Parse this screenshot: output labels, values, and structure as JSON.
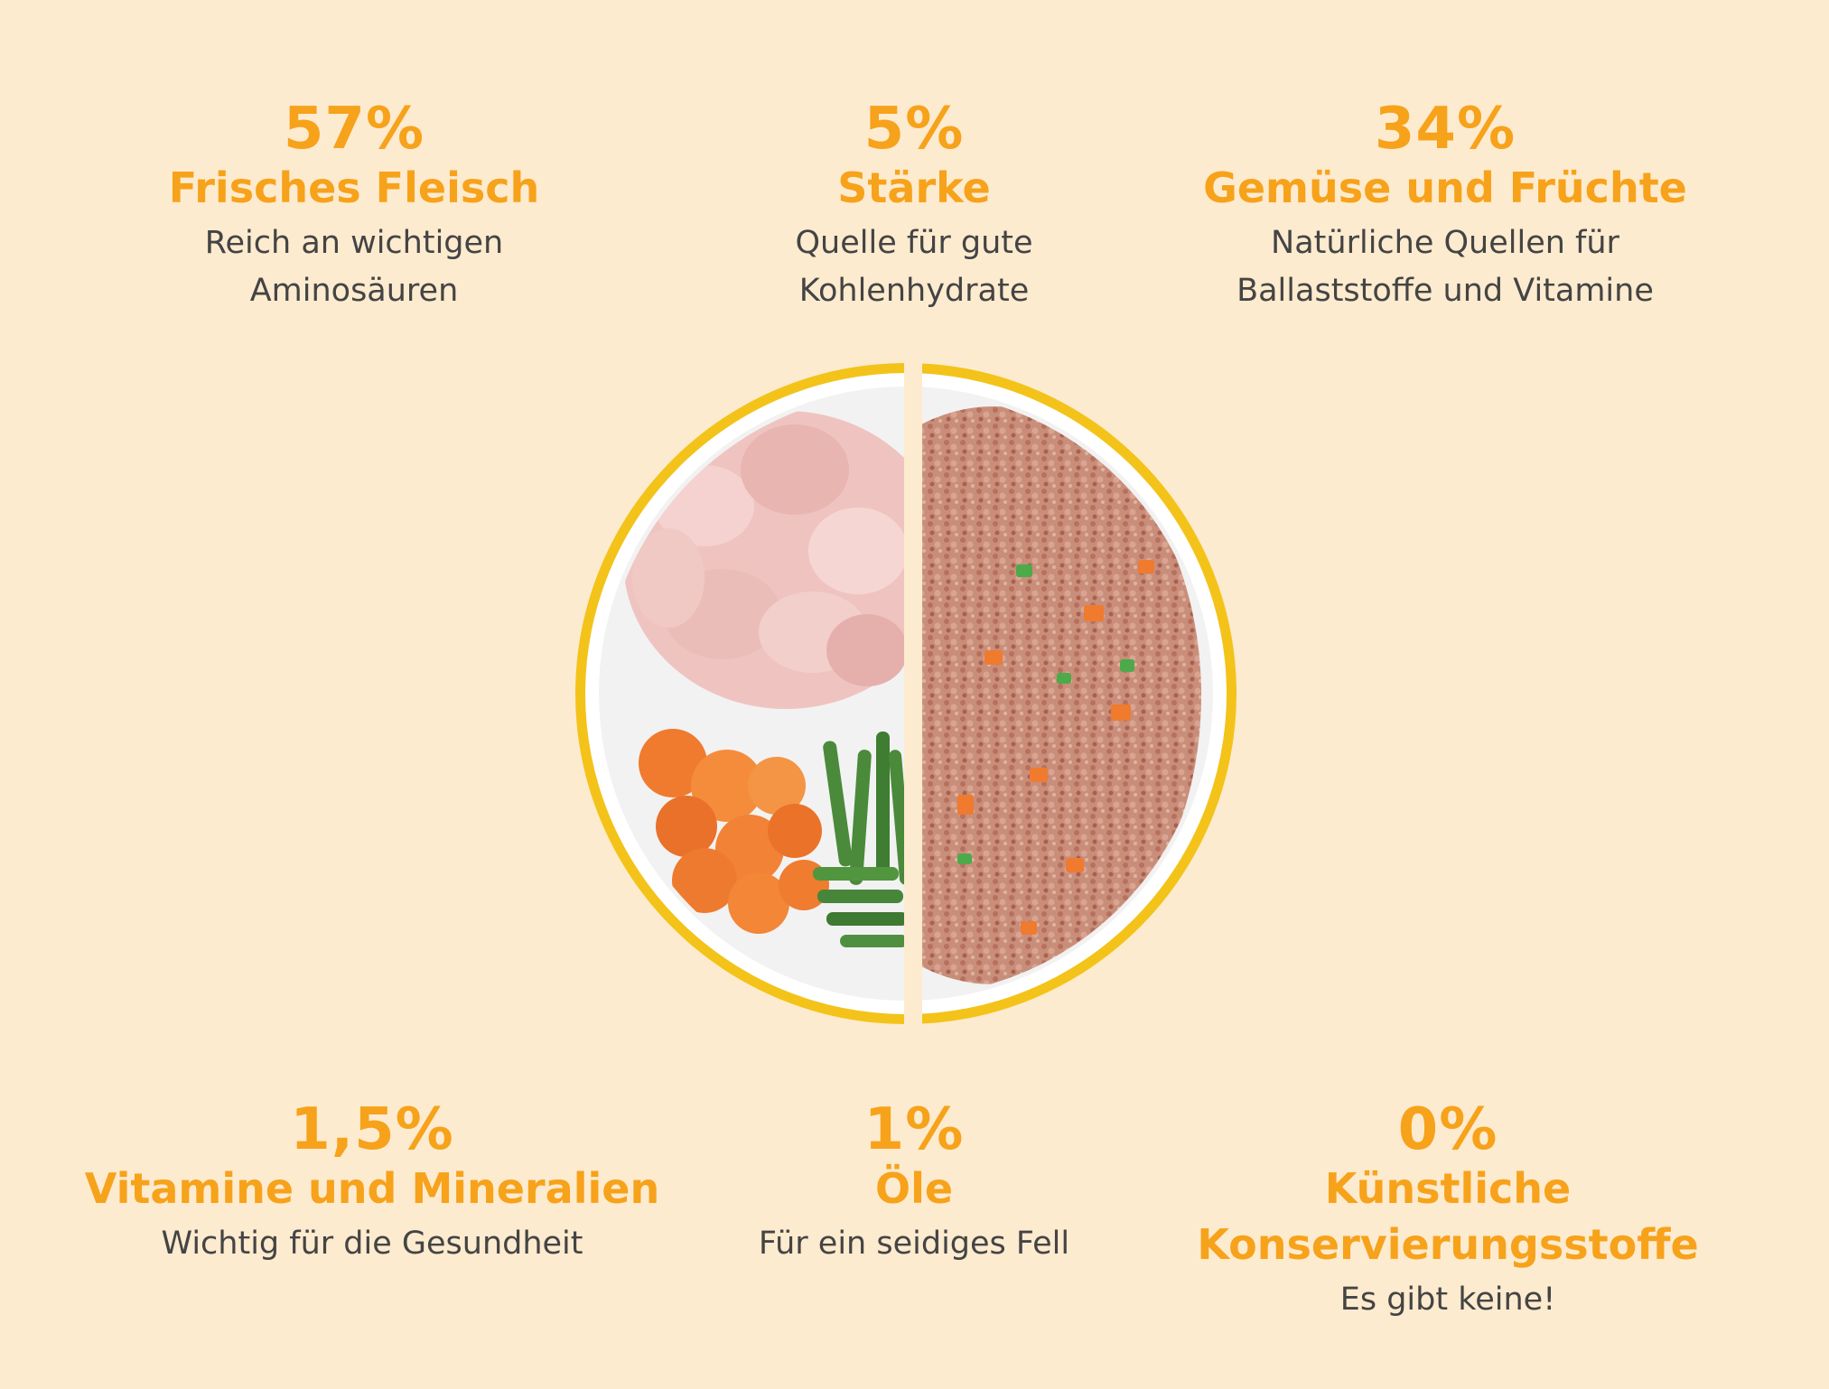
{
  "stats": [
    {
      "pct": "57%",
      "title": "Frisches Fleisch",
      "desc1": "Reich an wichtigen",
      "desc2": "Aminosäuren"
    },
    {
      "pct": "5%",
      "title": "Stärke",
      "desc1": "Quelle für gute",
      "desc2": "Kohlenhydrate"
    },
    {
      "pct": "34%",
      "title": "Gemüse und Früchte",
      "desc1": "Natürliche Quellen für",
      "desc2": "Ballaststoffe und Vitamine"
    },
    {
      "pct": "1,5%",
      "title": "Vitamine und Mineralien",
      "desc1": "Wichtig für die Gesundheit"
    },
    {
      "pct": "1%",
      "title": "Öle",
      "desc1": "Für ein seidiges Fell"
    },
    {
      "pct": "0%",
      "title1": "Künstliche",
      "title2": "Konservierungsstoffe",
      "desc1": "Es gibt keine!"
    }
  ],
  "colors": {
    "background": "#fdebcf",
    "accent": "#f7a21b",
    "text": "#444444",
    "bowl_rim": "#f3c31a"
  },
  "image": {
    "subject": "split-bowl-food-photo",
    "left_half": "raw-chicken-carrots-green-beans",
    "right_half": "prepared-ground-meal"
  }
}
